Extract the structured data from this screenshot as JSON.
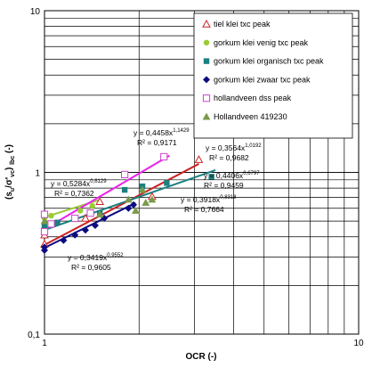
{
  "chart_data": {
    "type": "scatter",
    "x_scale": "log",
    "y_scale": "log",
    "xlim": [
      1,
      10
    ],
    "ylim": [
      0.1,
      10
    ],
    "grid": true,
    "legend_position": "top-right",
    "xlabel": "OCR (-)",
    "ylabel_parts": {
      "open": "(s",
      "sub1": "u",
      "mid": "/σ'",
      "sub2": "vc",
      "sub3": ") ",
      "sub4": "lbc",
      "unit": " (-)"
    },
    "x_ticks": [
      {
        "value": 1,
        "label": "1"
      },
      {
        "value": 10,
        "label": "10"
      }
    ],
    "y_ticks": [
      {
        "value": 0.1,
        "label": "0,1"
      },
      {
        "value": 1,
        "label": "1"
      },
      {
        "value": 10,
        "label": "10"
      }
    ],
    "series": [
      {
        "name": "tiel klei txc peak",
        "color": "#cc2222",
        "marker": "triangle-open",
        "points": [
          [
            1.0,
            0.36
          ],
          [
            1.0,
            0.41
          ],
          [
            1.35,
            0.52
          ],
          [
            1.5,
            0.66
          ],
          [
            2.2,
            0.71
          ],
          [
            3.1,
            1.2
          ]
        ],
        "fit": {
          "a": 0.3564,
          "b": 1.0192,
          "x0": 1.0,
          "x1": 3.1,
          "color": "#cc2222",
          "equation": "y = 0,3564x",
          "exponent": "1,0192",
          "r2": "R² = 0,9682"
        }
      },
      {
        "name": "gorkum klei venig txc peak",
        "color": "#99cc33",
        "marker": "circle",
        "points": [
          [
            1.0,
            0.48
          ],
          [
            1.0,
            0.52
          ],
          [
            1.05,
            0.54
          ],
          [
            1.3,
            0.58
          ],
          [
            1.42,
            0.62
          ]
        ],
        "fit": {
          "a": 0.5284,
          "b": 0.6129,
          "x0": 1.0,
          "x1": 1.5,
          "color": "#99cc33",
          "equation": "y = 0,5284x",
          "exponent": "0,6129",
          "r2": "R² = 0,7362"
        }
      },
      {
        "name": "gorkum klei organisch txc peak",
        "color": "#1a8080",
        "marker": "square",
        "points": [
          [
            1.0,
            0.44
          ],
          [
            1.0,
            0.47
          ],
          [
            1.1,
            0.49
          ],
          [
            1.5,
            0.56
          ],
          [
            1.8,
            0.78
          ],
          [
            2.05,
            0.82
          ],
          [
            2.45,
            0.86
          ],
          [
            3.4,
            0.94
          ]
        ],
        "fit": {
          "a": 0.4406,
          "b": 0.6797,
          "x0": 1.0,
          "x1": 3.5,
          "color": "#1a8080",
          "equation": "y = 0,4406x",
          "exponent": "0,6797",
          "r2": "R² = 0,9459"
        }
      },
      {
        "name": "gorkum klei zwaar txc peak",
        "color": "#0a0a80",
        "marker": "diamond",
        "points": [
          [
            1.0,
            0.33
          ],
          [
            1.0,
            0.345
          ],
          [
            1.15,
            0.38
          ],
          [
            1.25,
            0.41
          ],
          [
            1.35,
            0.44
          ],
          [
            1.45,
            0.47
          ],
          [
            1.55,
            0.52
          ],
          [
            1.85,
            0.6
          ],
          [
            1.92,
            0.63
          ]
        ],
        "fit": {
          "a": 0.3419,
          "b": 0.9552,
          "x0": 1.0,
          "x1": 1.95,
          "color": "#0a0a80",
          "equation": "y = 0,3419x",
          "exponent": "0,9552",
          "r2": "R² = 0,9605"
        }
      },
      {
        "name": "hollandveen dss peak",
        "color": "#cc44cc",
        "marker": "square-open",
        "points": [
          [
            1.0,
            0.43
          ],
          [
            1.0,
            0.55
          ],
          [
            1.05,
            0.48
          ],
          [
            1.25,
            0.52
          ],
          [
            1.4,
            0.56
          ],
          [
            1.8,
            0.97
          ],
          [
            2.4,
            1.25
          ]
        ],
        "fit": {
          "a": 0.4458,
          "b": 1.1429,
          "x0": 1.0,
          "x1": 2.5,
          "color": "#ee22ee",
          "equation": "y = 0,4458x",
          "exponent": "1,1429",
          "r2": "R² = 0,9171"
        }
      },
      {
        "name": "Hollandveen 419230",
        "color": "#7a9a4a",
        "marker": "triangle",
        "points": [
          [
            1.0,
            0.5
          ],
          [
            1.5,
            0.55
          ],
          [
            1.85,
            0.68
          ],
          [
            2.05,
            0.78
          ],
          [
            2.1,
            0.65
          ],
          [
            2.2,
            0.68
          ],
          [
            1.95,
            0.58
          ]
        ],
        "fit": {
          "a": 0.3918,
          "b": 0.8318,
          "x0": 1.0,
          "x1": 2.5,
          "color": null,
          "equation": "y = 0,3918x",
          "exponent": "0,8318",
          "r2": "R² = 0,7664"
        }
      }
    ]
  }
}
